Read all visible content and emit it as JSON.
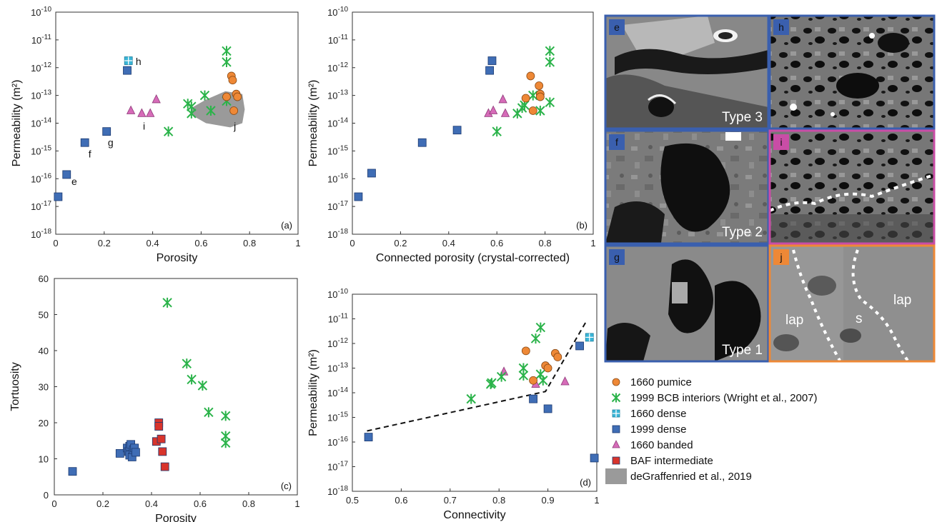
{
  "colors": {
    "pumice_1660": "#ee8836",
    "bcb_1999": "#2bb34a",
    "dense_1660": "#3ab6d8",
    "dense_1999": "#3f6db5",
    "banded_1660": "#d66bb8",
    "baf": "#d8342c",
    "degraffenried": "#9a9a9a",
    "frame_blue": "#3a5fae",
    "frame_magenta": "#c94da6",
    "frame_orange": "#ee8836"
  },
  "legend": [
    {
      "key": "pumice_1660",
      "marker": "circle",
      "label": "1660 pumice"
    },
    {
      "key": "bcb_1999",
      "marker": "star",
      "label": "1999 BCB interiors (Wright et al., 2007)"
    },
    {
      "key": "dense_1660",
      "marker": "cross-square",
      "label": "1660 dense"
    },
    {
      "key": "dense_1999",
      "marker": "square",
      "label": "1999 dense"
    },
    {
      "key": "banded_1660",
      "marker": "triangle",
      "label": "1660 banded"
    },
    {
      "key": "baf",
      "marker": "square",
      "label": "BAF intermediate"
    },
    {
      "key": "degraffenried",
      "marker": "patch",
      "label": "deGraffenried et al., 2019"
    }
  ],
  "chart_data": [
    {
      "id": "a",
      "type": "scatter",
      "panel_label": "(a)",
      "xlabel": "Porosity",
      "ylabel": "Permeability (m²)",
      "xlim": [
        0,
        1
      ],
      "ylim_log10": [
        -18,
        -10
      ],
      "yscale": "log",
      "xticks": [
        "0",
        "0.2",
        "0.4",
        "0.6",
        "0.8",
        "1"
      ],
      "yticks": [
        {
          "base": "10",
          "exp": "-10"
        },
        {
          "base": "10",
          "exp": "-11"
        },
        {
          "base": "10",
          "exp": "-12"
        },
        {
          "base": "10",
          "exp": "-13"
        },
        {
          "base": "10",
          "exp": "-14"
        },
        {
          "base": "10",
          "exp": "-15"
        },
        {
          "base": "10",
          "exp": "-16"
        },
        {
          "base": "10",
          "exp": "-17"
        },
        {
          "base": "10",
          "exp": "-18"
        }
      ],
      "region": {
        "key": "degraffenried",
        "points": [
          [
            0.56,
            -13.45
          ],
          [
            0.62,
            -13.15
          ],
          [
            0.7,
            -12.85
          ],
          [
            0.77,
            -12.95
          ],
          [
            0.78,
            -13.5
          ],
          [
            0.77,
            -14.0
          ],
          [
            0.72,
            -14.15
          ],
          [
            0.62,
            -14.0
          ],
          [
            0.56,
            -13.7
          ]
        ]
      },
      "series": [
        {
          "key": "dense_1999",
          "marker": "square",
          "points": [
            [
              0.01,
              -16.65
            ],
            [
              0.045,
              -15.85
            ],
            [
              0.12,
              -14.7
            ],
            [
              0.21,
              -14.3
            ],
            [
              0.295,
              -12.1
            ]
          ]
        },
        {
          "key": "dense_1660",
          "marker": "cross-square",
          "points": [
            [
              0.3,
              -11.75
            ]
          ]
        },
        {
          "key": "banded_1660",
          "marker": "triangle",
          "points": [
            [
              0.31,
              -13.55
            ],
            [
              0.355,
              -13.65
            ],
            [
              0.39,
              -13.65
            ],
            [
              0.415,
              -13.15
            ]
          ]
        },
        {
          "key": "bcb_1999",
          "marker": "star",
          "points": [
            [
              0.465,
              -14.3
            ],
            [
              0.545,
              -13.3
            ],
            [
              0.56,
              -13.4
            ],
            [
              0.56,
              -13.65
            ],
            [
              0.615,
              -13.0
            ],
            [
              0.64,
              -13.55
            ],
            [
              0.705,
              -11.4
            ],
            [
              0.705,
              -11.8
            ],
            [
              0.705,
              -13.2
            ]
          ]
        },
        {
          "key": "pumice_1660",
          "marker": "circle",
          "points": [
            [
              0.705,
              -13.05
            ],
            [
              0.725,
              -12.3
            ],
            [
              0.73,
              -12.45
            ],
            [
              0.745,
              -12.95
            ],
            [
              0.75,
              -13.05
            ],
            [
              0.735,
              -13.55
            ]
          ]
        }
      ],
      "annotations": [
        {
          "text": "h",
          "x": 0.33,
          "y": -11.78
        },
        {
          "text": "f",
          "x": 0.135,
          "y": -15.1
        },
        {
          "text": "g",
          "x": 0.215,
          "y": -14.7
        },
        {
          "text": "e",
          "x": 0.065,
          "y": -16.1
        },
        {
          "text": "i",
          "x": 0.36,
          "y": -14.1
        },
        {
          "text": "j",
          "x": 0.735,
          "y": -14.1
        }
      ]
    },
    {
      "id": "b",
      "type": "scatter",
      "panel_label": "(b)",
      "xlabel": "Connected porosity (crystal-corrected)",
      "ylabel": "Permeability (m²)",
      "xlim": [
        0,
        1
      ],
      "ylim_log10": [
        -18,
        -10
      ],
      "yscale": "log",
      "xticks": [
        "0",
        "0.2",
        "0.4",
        "0.6",
        "0.8",
        "1"
      ],
      "yticks": [
        {
          "base": "10",
          "exp": "-10"
        },
        {
          "base": "10",
          "exp": "-11"
        },
        {
          "base": "10",
          "exp": "-12"
        },
        {
          "base": "10",
          "exp": "-13"
        },
        {
          "base": "10",
          "exp": "-14"
        },
        {
          "base": "10",
          "exp": "-15"
        },
        {
          "base": "10",
          "exp": "-16"
        },
        {
          "base": "10",
          "exp": "-17"
        },
        {
          "base": "10",
          "exp": "-18"
        }
      ],
      "series": [
        {
          "key": "dense_1999",
          "marker": "square",
          "points": [
            [
              0.025,
              -16.65
            ],
            [
              0.08,
              -15.8
            ],
            [
              0.29,
              -14.7
            ],
            [
              0.435,
              -14.25
            ],
            [
              0.57,
              -12.1
            ],
            [
              0.58,
              -11.75
            ]
          ]
        },
        {
          "key": "banded_1660",
          "marker": "triangle",
          "points": [
            [
              0.565,
              -13.65
            ],
            [
              0.585,
              -13.55
            ],
            [
              0.625,
              -13.15
            ],
            [
              0.635,
              -13.65
            ]
          ]
        },
        {
          "key": "bcb_1999",
          "marker": "star",
          "points": [
            [
              0.6,
              -14.3
            ],
            [
              0.685,
              -13.65
            ],
            [
              0.705,
              -13.45
            ],
            [
              0.715,
              -13.35
            ],
            [
              0.75,
              -13.0
            ],
            [
              0.78,
              -13.55
            ],
            [
              0.82,
              -11.4
            ],
            [
              0.82,
              -11.8
            ],
            [
              0.82,
              -13.25
            ]
          ]
        },
        {
          "key": "pumice_1660",
          "marker": "circle",
          "points": [
            [
              0.72,
              -13.1
            ],
            [
              0.74,
              -12.3
            ],
            [
              0.75,
              -13.55
            ],
            [
              0.775,
              -12.65
            ],
            [
              0.78,
              -12.95
            ],
            [
              0.78,
              -13.05
            ]
          ]
        }
      ]
    },
    {
      "id": "c",
      "type": "scatter",
      "panel_label": "(c)",
      "xlabel": "Porosity",
      "ylabel": "Tortuosity",
      "xlim": [
        0,
        1
      ],
      "ylim": [
        0,
        60
      ],
      "xticks": [
        "0",
        "0.2",
        "0.4",
        "0.6",
        "0.8",
        "1"
      ],
      "yticks": [
        "0",
        "10",
        "20",
        "30",
        "40",
        "50",
        "60"
      ],
      "series": [
        {
          "key": "dense_1999",
          "marker": "square",
          "points": [
            [
              0.075,
              6.5
            ],
            [
              0.27,
              11.5
            ],
            [
              0.3,
              13
            ],
            [
              0.305,
              12
            ],
            [
              0.31,
              11
            ],
            [
              0.31,
              13.5
            ],
            [
              0.315,
              14
            ],
            [
              0.32,
              10.5
            ],
            [
              0.325,
              12.5
            ],
            [
              0.33,
              13
            ],
            [
              0.335,
              11.8
            ]
          ]
        },
        {
          "key": "baf",
          "marker": "square",
          "points": [
            [
              0.42,
              14.8
            ],
            [
              0.43,
              20
            ],
            [
              0.43,
              19
            ],
            [
              0.44,
              15.5
            ],
            [
              0.445,
              12
            ],
            [
              0.455,
              7.8
            ]
          ]
        },
        {
          "key": "bcb_1999",
          "marker": "star",
          "points": [
            [
              0.465,
              53.3
            ],
            [
              0.545,
              36.4
            ],
            [
              0.565,
              32
            ],
            [
              0.61,
              30.3
            ],
            [
              0.635,
              22.9
            ],
            [
              0.705,
              21.9
            ],
            [
              0.705,
              16.3
            ],
            [
              0.705,
              14.4
            ]
          ]
        }
      ]
    },
    {
      "id": "d",
      "type": "scatter",
      "panel_label": "(d)",
      "xlabel": "Connectivity",
      "ylabel": "Permeability (m²)",
      "xlim": [
        0.5,
        1
      ],
      "ylim_log10": [
        -18,
        -10
      ],
      "yscale": "log",
      "xticks": [
        "0.5",
        "0.6",
        "0.7",
        "0.8",
        "0.9",
        "1"
      ],
      "yticks": [
        {
          "base": "10",
          "exp": "-10"
        },
        {
          "base": "10",
          "exp": "-11"
        },
        {
          "base": "10",
          "exp": "-12"
        },
        {
          "base": "10",
          "exp": "-13"
        },
        {
          "base": "10",
          "exp": "-14"
        },
        {
          "base": "10",
          "exp": "-15"
        },
        {
          "base": "10",
          "exp": "-16"
        },
        {
          "base": "10",
          "exp": "-17"
        },
        {
          "base": "10",
          "exp": "-18"
        }
      ],
      "fit_line": [
        [
          0.53,
          -15.55
        ],
        [
          0.895,
          -13.95
        ],
        [
          0.98,
          -11.05
        ]
      ],
      "series": [
        {
          "key": "dense_1999",
          "marker": "square",
          "points": [
            [
              0.533,
              -15.8
            ],
            [
              0.87,
              -14.25
            ],
            [
              0.9,
              -14.65
            ],
            [
              0.965,
              -12.1
            ],
            [
              0.995,
              -16.65
            ]
          ]
        },
        {
          "key": "dense_1660",
          "marker": "cross-square",
          "points": [
            [
              0.985,
              -11.75
            ]
          ]
        },
        {
          "key": "banded_1660",
          "marker": "triangle",
          "points": [
            [
              0.81,
              -13.15
            ],
            [
              0.875,
              -13.65
            ],
            [
              0.935,
              -13.55
            ]
          ]
        },
        {
          "key": "bcb_1999",
          "marker": "star",
          "points": [
            [
              0.743,
              -14.25
            ],
            [
              0.783,
              -13.65
            ],
            [
              0.785,
              -13.6
            ],
            [
              0.805,
              -13.35
            ],
            [
              0.85,
              -13.0
            ],
            [
              0.85,
              -13.3
            ],
            [
              0.875,
              -11.8
            ],
            [
              0.885,
              -11.35
            ],
            [
              0.885,
              -13.25
            ],
            [
              0.89,
              -13.5
            ]
          ]
        },
        {
          "key": "pumice_1660",
          "marker": "circle",
          "points": [
            [
              0.855,
              -12.3
            ],
            [
              0.87,
              -13.5
            ],
            [
              0.895,
              -12.9
            ],
            [
              0.9,
              -13.0
            ],
            [
              0.915,
              -12.4
            ],
            [
              0.92,
              -12.55
            ]
          ]
        }
      ]
    }
  ],
  "images": [
    {
      "id": "e",
      "frame": "frame_blue",
      "type_label": "Type 3"
    },
    {
      "id": "h",
      "frame": "frame_blue",
      "type_label": ""
    },
    {
      "id": "f",
      "frame": "frame_blue",
      "type_label": "Type 2"
    },
    {
      "id": "i",
      "frame": "frame_magenta",
      "type_label": ""
    },
    {
      "id": "g",
      "frame": "frame_blue",
      "type_label": "Type 1"
    },
    {
      "id": "j",
      "frame": "frame_orange",
      "type_label": "",
      "labels": [
        "lap",
        "s",
        "lap"
      ]
    }
  ]
}
